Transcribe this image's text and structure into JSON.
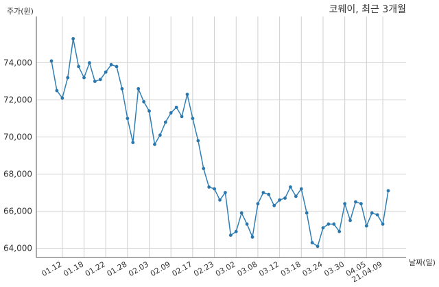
{
  "chart_data": {
    "type": "line",
    "title": "코웨이, 최근 3개월",
    "ylabel": "주가(원)",
    "xlabel": "날짜(일)",
    "ylim": [
      63500,
      76500
    ],
    "y_ticks": [
      64000,
      66000,
      68000,
      70000,
      72000,
      74000
    ],
    "y_tick_labels": [
      "64,000",
      "66,000",
      "68,000",
      "70,000",
      "72,000",
      "74,000"
    ],
    "x_tick_labels": [
      "01.12",
      "01.18",
      "01.22",
      "01.28",
      "02.03",
      "02.09",
      "02.17",
      "02.23",
      "03.02",
      "03.08",
      "03.12",
      "03.18",
      "03.24",
      "03.30",
      "04.05",
      "21.04.09"
    ],
    "x_tick_positions": [
      2,
      6,
      10,
      14,
      18,
      22,
      26,
      30,
      34,
      38,
      42,
      46,
      50,
      54,
      58,
      61
    ],
    "grid": true,
    "colors": {
      "line": "#2f7fb4",
      "marker": "#2a77ad",
      "grid": "#cfcfcf",
      "axis": "#555555"
    },
    "series": [
      {
        "name": "",
        "values": [
          74100,
          72500,
          72100,
          73200,
          75300,
          73800,
          73200,
          74000,
          73000,
          73100,
          73500,
          73900,
          73800,
          72600,
          71000,
          69700,
          72600,
          71900,
          71400,
          69600,
          70100,
          70800,
          71300,
          71600,
          71100,
          72300,
          71000,
          69800,
          68300,
          67300,
          67200,
          66600,
          67000,
          64700,
          64900,
          65900,
          65300,
          64600,
          66400,
          67000,
          66900,
          66300,
          66600,
          66700,
          67300,
          66800,
          67200,
          65900,
          64300,
          64100,
          65100,
          65300,
          65300,
          64900,
          66400,
          65500,
          66500,
          66400,
          65200,
          65900,
          65800,
          65300,
          67100
        ]
      }
    ]
  }
}
